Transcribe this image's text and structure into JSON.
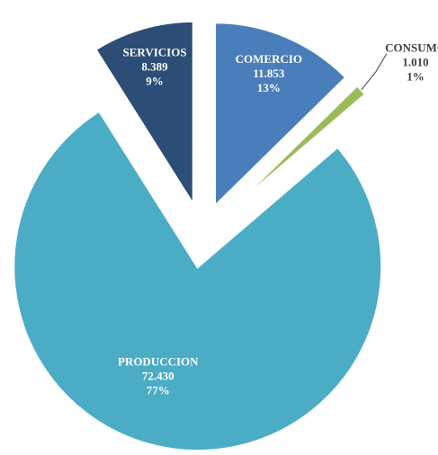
{
  "chart_data": {
    "type": "pie",
    "categories": [
      "COMERCIO",
      "CONSUMO",
      "PRODUCCION",
      "SERVICIOS"
    ],
    "values": [
      11853,
      1010,
      72430,
      8389
    ],
    "value_labels": [
      "11.853",
      "1.010",
      "72.430",
      "8.389"
    ],
    "percent_labels": [
      "13%",
      "1%",
      "77%",
      "9%"
    ],
    "colors": [
      "#4a7ebb",
      "#9bbb59",
      "#4bacc6",
      "#2c4d75"
    ]
  }
}
